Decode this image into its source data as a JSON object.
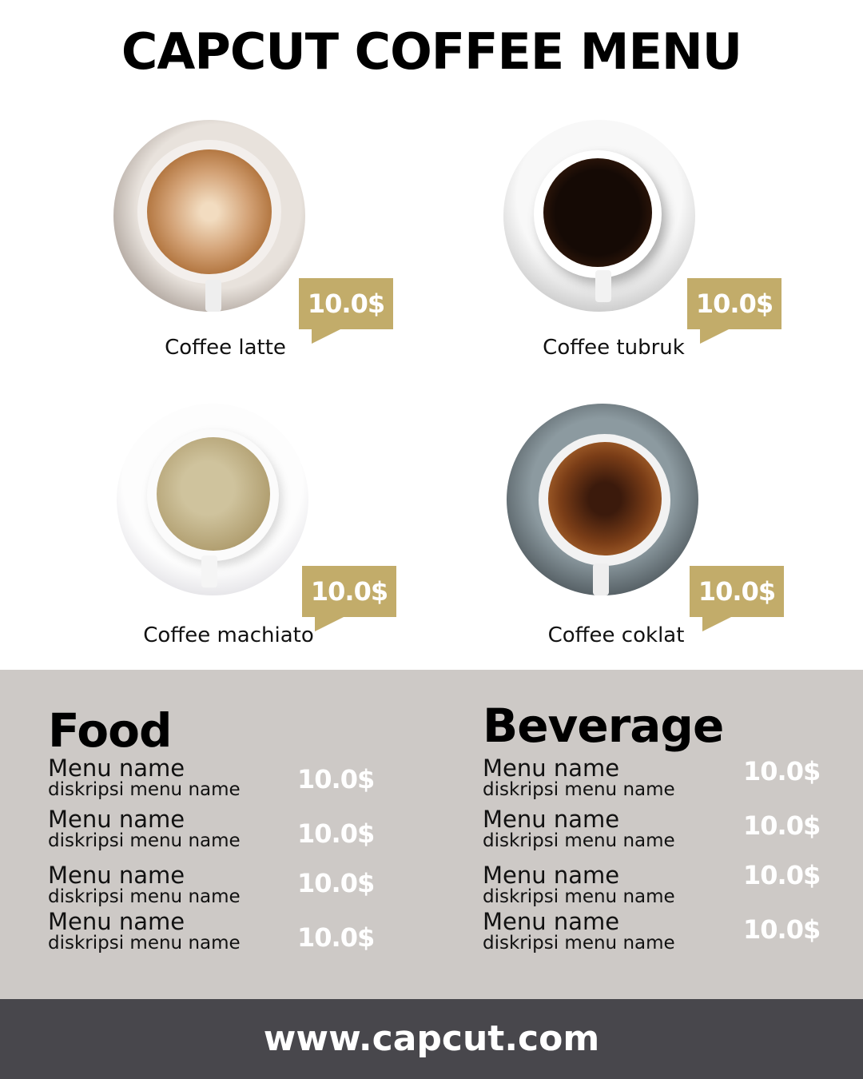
{
  "title": "CAPCUT COFFEE MENU",
  "colors": {
    "accent": "#c2ac6a",
    "section_bg": "#cdc9c6",
    "footer_bg": "#48474c"
  },
  "coffees": [
    {
      "name": "Coffee latte",
      "price": "10.0$"
    },
    {
      "name": "Coffee tubruk",
      "price": "10.0$"
    },
    {
      "name": "Coffee machiato",
      "price": "10.0$"
    },
    {
      "name": "Coffee coklat",
      "price": "10.0$"
    }
  ],
  "food": {
    "title": "Food",
    "items": [
      {
        "name": "Menu name",
        "desc": "diskripsi menu name",
        "price": "10.0$"
      },
      {
        "name": "Menu name",
        "desc": "diskripsi menu name",
        "price": "10.0$"
      },
      {
        "name": "Menu name",
        "desc": "diskripsi menu name",
        "price": "10.0$"
      },
      {
        "name": "Menu name",
        "desc": "diskripsi menu name",
        "price": "10.0$"
      }
    ]
  },
  "beverage": {
    "title": "Beverage",
    "items": [
      {
        "name": "Menu name",
        "desc": "diskripsi menu name",
        "price": "10.0$"
      },
      {
        "name": "Menu name",
        "desc": "diskripsi menu name",
        "price": "10.0$"
      },
      {
        "name": "Menu name",
        "desc": "diskripsi menu name",
        "price": "10.0$"
      },
      {
        "name": "Menu name",
        "desc": "diskripsi menu name",
        "price": "10.0$"
      }
    ]
  },
  "footer": "www.capcut.com"
}
